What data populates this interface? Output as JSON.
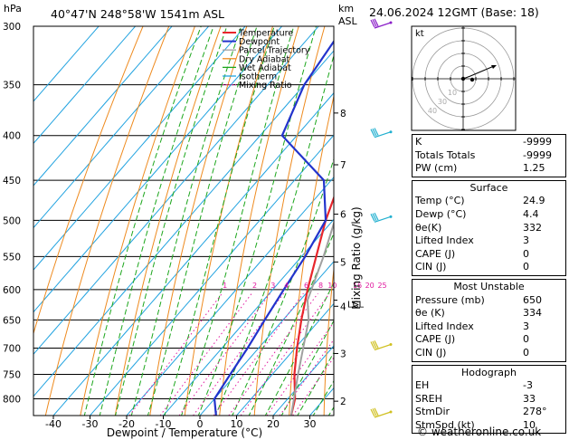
{
  "header": {
    "pressure_unit": "hPa",
    "location": "40°47'N  248°58'W  1541m  ASL",
    "alt_unit_1": "km",
    "alt_unit_2": "ASL",
    "datetime": "24.06.2024  12GMT  (Base: 18)"
  },
  "chart_data": {
    "type": "line",
    "xlabel": "Dewpoint / Temperature (°C)",
    "ylabel_right": "Mixing Ratio (g/kg)",
    "x_ticks": [
      -40,
      -30,
      -20,
      -10,
      0,
      10,
      20,
      30
    ],
    "pressure_ticks": [
      300,
      350,
      400,
      450,
      500,
      550,
      600,
      650,
      700,
      750,
      800
    ],
    "km_ticks": [
      {
        "km": "2",
        "p": 805
      },
      {
        "km": "3",
        "p": 710
      },
      {
        "km": "4",
        "p": 627
      },
      {
        "km": "5",
        "p": 558
      },
      {
        "km": "6",
        "p": 492
      },
      {
        "km": "7",
        "p": 432
      },
      {
        "km": "8",
        "p": 377
      }
    ],
    "lcl": {
      "label": "LCL",
      "p": 617
    },
    "mixing_ratio_labels": [
      "1",
      "2",
      "3",
      "4",
      "6",
      "8",
      "10",
      "16",
      "20",
      "25"
    ],
    "mixing_ratio_values": [
      1,
      2,
      3,
      4,
      6,
      8,
      10,
      16,
      20,
      25
    ],
    "legend": [
      {
        "name": "Temperature",
        "color": "#e8262c",
        "style": "solid"
      },
      {
        "name": "Dewpoint",
        "color": "#2233cc",
        "style": "solid"
      },
      {
        "name": "Parcel Trajectory",
        "color": "#a0a0a0",
        "style": "solid"
      },
      {
        "name": "Dry Adiabat",
        "color": "#ee8a1e",
        "style": "solid"
      },
      {
        "name": "Wet Adiabat",
        "color": "#1ca61c",
        "style": "solid"
      },
      {
        "name": "Isotherm",
        "color": "#22a3e0",
        "style": "solid"
      },
      {
        "name": "Mixing Ratio",
        "color": "#e0189e",
        "style": "dotted"
      }
    ],
    "series": [
      {
        "name": "Temperature",
        "color": "#e8262c",
        "points": [
          [
            24.9,
            836
          ],
          [
            22,
            800
          ],
          [
            16,
            750
          ],
          [
            10.5,
            700
          ],
          [
            5,
            650
          ],
          [
            -0.5,
            600
          ],
          [
            -6,
            550
          ],
          [
            -12,
            500
          ],
          [
            -17.5,
            450
          ],
          [
            -23,
            400
          ],
          [
            -29,
            350
          ],
          [
            -36,
            300
          ]
        ]
      },
      {
        "name": "Dewpoint",
        "color": "#2233cc",
        "points": [
          [
            4.4,
            836
          ],
          [
            0,
            800
          ],
          [
            -1.5,
            750
          ],
          [
            -3,
            700
          ],
          [
            -5,
            650
          ],
          [
            -7,
            600
          ],
          [
            -9,
            550
          ],
          [
            -12,
            500
          ],
          [
            -22,
            450
          ],
          [
            -44,
            400
          ],
          [
            -50,
            350
          ],
          [
            -53,
            300
          ]
        ]
      },
      {
        "name": "Parcel Trajectory",
        "color": "#a0a0a0",
        "points": [
          [
            24.9,
            836
          ],
          [
            17,
            750
          ],
          [
            7,
            650
          ],
          [
            2,
            617
          ],
          [
            -4,
            550
          ],
          [
            -9.5,
            500
          ],
          [
            -15,
            450
          ],
          [
            -22,
            400
          ],
          [
            -30,
            350
          ],
          [
            -38.5,
            300
          ]
        ]
      }
    ],
    "wind_barbs_color": "#8a1ec8"
  },
  "hodograph": {
    "label": "kt",
    "rings": [
      "10",
      "20",
      "30",
      "40"
    ],
    "ring_label_texts": [
      "10",
      "30",
      "40"
    ]
  },
  "indices": [
    {
      "label": "K",
      "value": "-9999"
    },
    {
      "label": "Totals Totals",
      "value": "-9999"
    },
    {
      "label": "PW (cm)",
      "value": "1.25"
    }
  ],
  "surface": {
    "title": "Surface",
    "rows": [
      {
        "label": "Temp (°C)",
        "value": "24.9"
      },
      {
        "label": "Dewp (°C)",
        "value": "4.4"
      },
      {
        "label": "θe(K)",
        "value": "332"
      },
      {
        "label": "Lifted Index",
        "value": "3"
      },
      {
        "label": "CAPE (J)",
        "value": "0"
      },
      {
        "label": "CIN (J)",
        "value": "0"
      }
    ]
  },
  "most_unstable": {
    "title": "Most Unstable",
    "rows": [
      {
        "label": "Pressure (mb)",
        "value": "650"
      },
      {
        "label": "θe (K)",
        "value": "334"
      },
      {
        "label": "Lifted Index",
        "value": "3"
      },
      {
        "label": "CAPE (J)",
        "value": "0"
      },
      {
        "label": "CIN (J)",
        "value": "0"
      }
    ]
  },
  "hodograph_table": {
    "title": "Hodograph",
    "rows": [
      {
        "label": "EH",
        "value": "-3"
      },
      {
        "label": "SREH",
        "value": "33"
      },
      {
        "label": "StmDir",
        "value": "278°"
      },
      {
        "label": "StmSpd (kt)",
        "value": "10"
      }
    ]
  },
  "footer": "© weatheronline.co.uk"
}
